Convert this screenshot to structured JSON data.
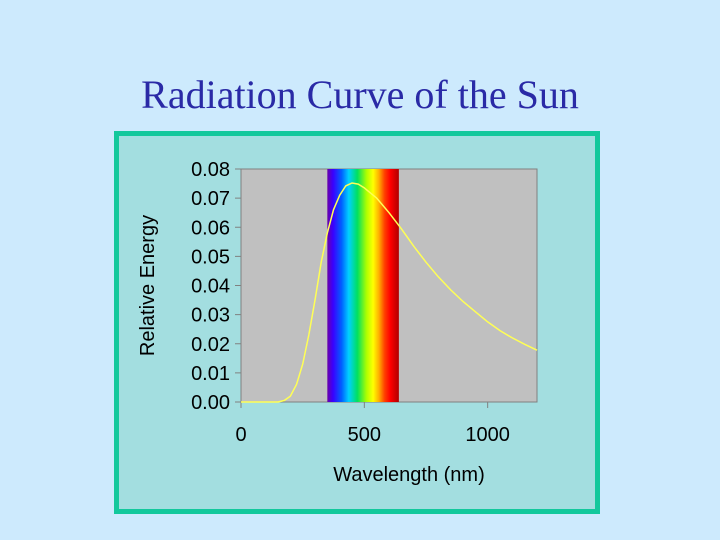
{
  "slide": {
    "title": "Radiation Curve of the Sun"
  },
  "colors": {
    "background": "#cdeafd",
    "title": "#2a2aa6",
    "frame_fill": "#a3dee0",
    "frame_border": "#13c89c",
    "plot_area": "#c0c0c0",
    "curve": "#ffff55"
  },
  "chart_data": {
    "type": "line",
    "title": "",
    "xlabel": "Wavelength (nm)",
    "ylabel": "Relative Energy",
    "xlim": [
      0,
      1200
    ],
    "ylim": [
      0,
      0.08
    ],
    "x_ticks": [
      "0",
      "500",
      "1000"
    ],
    "x_tick_values": [
      0,
      500,
      1000
    ],
    "y_ticks": [
      "0.00",
      "0.01",
      "0.02",
      "0.03",
      "0.04",
      "0.05",
      "0.06",
      "0.07",
      "0.08"
    ],
    "y_tick_values": [
      0,
      0.01,
      0.02,
      0.03,
      0.04,
      0.05,
      0.06,
      0.07,
      0.08
    ],
    "grid": false,
    "legend": "none",
    "visible_spectrum_band": {
      "x_start": 350,
      "x_end": 640
    },
    "series": [
      {
        "x": [
          0,
          100,
          150,
          175,
          200,
          225,
          250,
          275,
          300,
          325,
          350,
          375,
          400,
          425,
          450,
          475,
          500,
          550,
          600,
          650,
          700,
          750,
          800,
          850,
          900,
          950,
          1000,
          1050,
          1100,
          1150,
          1200
        ],
        "y": [
          0,
          0,
          0,
          0.0005,
          0.002,
          0.006,
          0.013,
          0.023,
          0.035,
          0.048,
          0.058,
          0.066,
          0.071,
          0.0742,
          0.0752,
          0.0748,
          0.0735,
          0.07,
          0.065,
          0.0595,
          0.0535,
          0.048,
          0.043,
          0.0385,
          0.0345,
          0.031,
          0.0275,
          0.0245,
          0.022,
          0.0198,
          0.0178
        ]
      }
    ]
  }
}
